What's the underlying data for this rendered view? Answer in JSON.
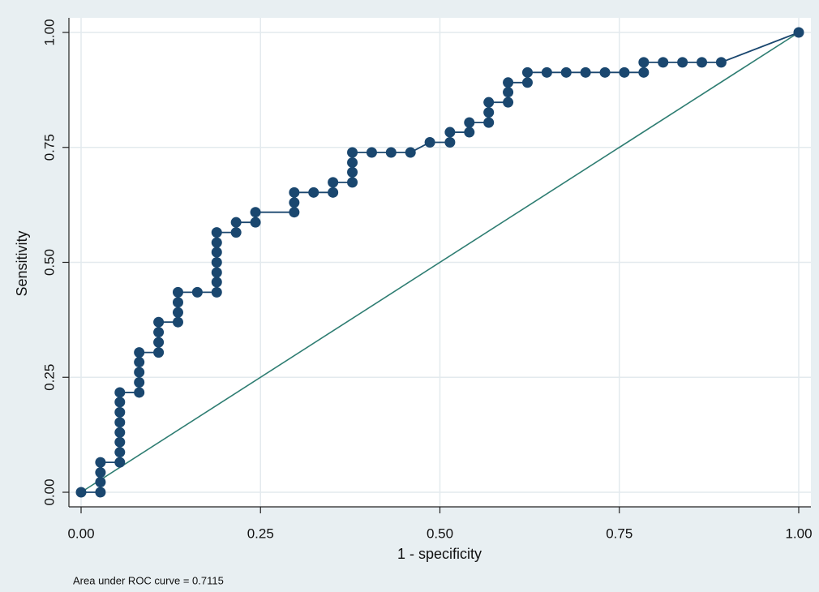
{
  "chart_data": {
    "type": "line",
    "xlabel": "1 - specificity",
    "ylabel": "Sensitivity",
    "annotation": "Area under ROC curve = 0.7115",
    "xlim": [
      0,
      1
    ],
    "ylim": [
      0,
      1
    ],
    "xticks": [
      {
        "value": 0,
        "label": "0.00"
      },
      {
        "value": 0.25,
        "label": "0.25"
      },
      {
        "value": 0.5,
        "label": "0.50"
      },
      {
        "value": 0.75,
        "label": "0.75"
      },
      {
        "value": 1,
        "label": "1.00"
      }
    ],
    "yticks": [
      {
        "value": 0,
        "label": "0.00"
      },
      {
        "value": 0.25,
        "label": "0.25"
      },
      {
        "value": 0.5,
        "label": "0.50"
      },
      {
        "value": 0.75,
        "label": "0.75"
      },
      {
        "value": 1,
        "label": "1.00"
      }
    ],
    "grid": true,
    "series": [
      {
        "color": "#1a476f",
        "marker": true,
        "x": [
          0,
          0.027,
          0.027,
          0.027,
          0.027,
          0.054,
          0.054,
          0.054,
          0.054,
          0.054,
          0.054,
          0.054,
          0.054,
          0.081,
          0.081,
          0.081,
          0.081,
          0.081,
          0.108,
          0.108,
          0.108,
          0.108,
          0.135,
          0.135,
          0.135,
          0.135,
          0.162,
          0.189,
          0.189,
          0.189,
          0.189,
          0.189,
          0.189,
          0.189,
          0.216,
          0.216,
          0.243,
          0.243,
          0.297,
          0.297,
          0.297,
          0.324,
          0.351,
          0.351,
          0.378,
          0.378,
          0.378,
          0.378,
          0.405,
          0.432,
          0.459,
          0.486,
          0.514,
          0.514,
          0.541,
          0.541,
          0.568,
          0.568,
          0.568,
          0.595,
          0.595,
          0.595,
          0.622,
          0.622,
          0.649,
          0.676,
          0.703,
          0.73,
          0.757,
          0.784,
          0.784,
          0.811,
          0.838,
          0.865,
          0.892,
          1
        ],
        "values": [
          0,
          0,
          0.022,
          0.043,
          0.065,
          0.065,
          0.087,
          0.109,
          0.13,
          0.152,
          0.174,
          0.196,
          0.217,
          0.217,
          0.239,
          0.261,
          0.283,
          0.304,
          0.304,
          0.326,
          0.348,
          0.37,
          0.37,
          0.391,
          0.413,
          0.435,
          0.435,
          0.435,
          0.457,
          0.478,
          0.5,
          0.522,
          0.543,
          0.565,
          0.565,
          0.587,
          0.587,
          0.609,
          0.609,
          0.63,
          0.652,
          0.652,
          0.652,
          0.674,
          0.674,
          0.696,
          0.717,
          0.739,
          0.739,
          0.739,
          0.739,
          0.761,
          0.761,
          0.783,
          0.783,
          0.804,
          0.804,
          0.826,
          0.848,
          0.848,
          0.87,
          0.891,
          0.891,
          0.913,
          0.913,
          0.913,
          0.913,
          0.913,
          0.913,
          0.913,
          0.935,
          0.935,
          0.935,
          0.935,
          0.935,
          1
        ]
      },
      {
        "color": "#2e7d72",
        "marker": false,
        "x": [
          0,
          1
        ],
        "values": [
          0,
          1
        ]
      }
    ]
  }
}
